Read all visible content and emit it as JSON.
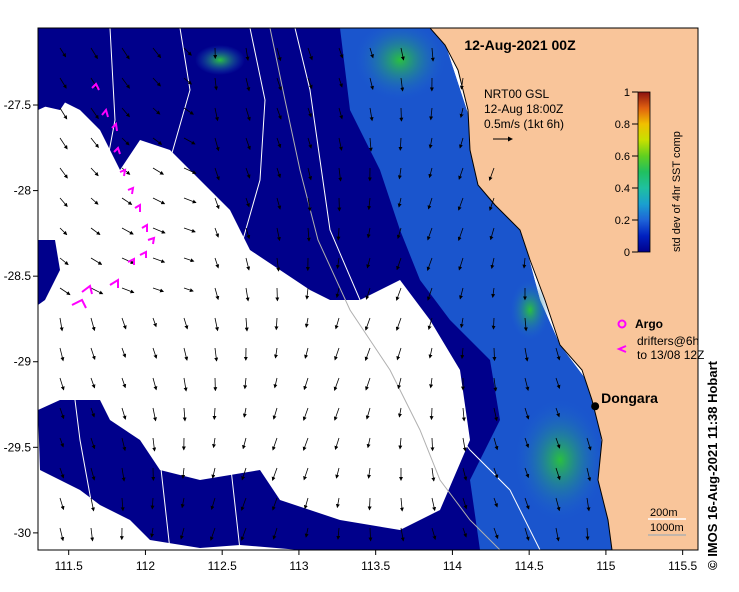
{
  "title": "12-Aug-2021 00Z",
  "x_ticks": [
    "111.5",
    "112",
    "112.5",
    "113",
    "113.5",
    "114",
    "114.5",
    "115",
    "115.5"
  ],
  "x_tick_values": [
    111.5,
    112,
    112.5,
    113,
    113.5,
    114,
    114.5,
    115,
    115.5
  ],
  "y_ticks": [
    "-27.5",
    "-28",
    "-28.5",
    "-29",
    "-29.5",
    "-30"
  ],
  "y_tick_values": [
    -27.5,
    -28,
    -28.5,
    -29,
    -29.5,
    -30
  ],
  "lon_range": [
    111.3,
    115.6
  ],
  "lat_range": [
    -30.1,
    -27.05
  ],
  "velocity_legend": {
    "line1": "NRT00 GSL",
    "line2": "12-Aug 18:00Z",
    "line3": "0.5m/s (1kt 6h)"
  },
  "colorbar": {
    "label": "std dev of 4hr SST comp",
    "ticks": [
      "1",
      "0.8",
      "0.6",
      "0.4",
      "0.2",
      "0"
    ],
    "tick_values": [
      1,
      0.8,
      0.6,
      0.4,
      0.2,
      0
    ]
  },
  "legend": {
    "argo_label": "Argo",
    "drifters_line1": "drifters@6h",
    "drifters_line2": "to 13/08 12Z",
    "argo_color": "#ff00ff",
    "drifter_color": "#ff00ff"
  },
  "place": {
    "name": "Dongara",
    "lon": 114.93,
    "lat": -29.26
  },
  "isobath_legend": {
    "line1": "200m",
    "line2": "1000m"
  },
  "credit": "© IMOS 16-Aug-2021 11:38 Hobart",
  "colors": {
    "land": "#f9c59a",
    "cloud": "#ffffff",
    "sst_dark": "#00008b",
    "sst_mid": "#1e64d8",
    "sst_high": "#1fb84a"
  }
}
